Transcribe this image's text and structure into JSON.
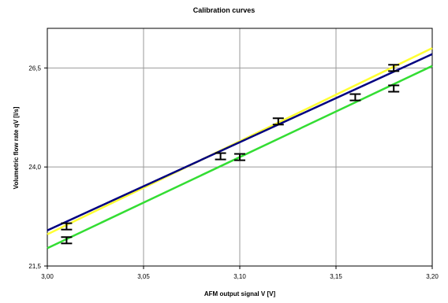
{
  "chart_data": {
    "type": "line",
    "title": "Calibration curves",
    "xlabel": "AFM output signal V [V]",
    "ylabel": "Volumetric flow rate qV [l/s]",
    "xlim": [
      3.0,
      3.2
    ],
    "ylim": [
      21.5,
      27.5
    ],
    "x_ticks": [
      3.0,
      3.05,
      3.1,
      3.15,
      3.2
    ],
    "x_tick_labels": [
      "3,00",
      "3,05",
      "3,10",
      "3,15",
      "3,20"
    ],
    "y_ticks": [
      21.5,
      24.0,
      26.5
    ],
    "y_tick_labels": [
      "21,5",
      "24,0",
      "26,5"
    ],
    "grid": true,
    "series": [
      {
        "color": "#FFFF33",
        "x": [
          3.0,
          3.2
        ],
        "y": [
          22.3,
          27.0
        ]
      },
      {
        "color": "#000080",
        "x": [
          3.0,
          3.2
        ],
        "y": [
          22.4,
          26.85
        ]
      },
      {
        "color": "#33DD33",
        "x": [
          3.0,
          3.2
        ],
        "y": [
          21.95,
          26.55
        ]
      }
    ],
    "error_bars": [
      {
        "x": 3.01,
        "y": 22.5,
        "err": 0.08
      },
      {
        "x": 3.01,
        "y": 22.15,
        "err": 0.08
      },
      {
        "x": 3.09,
        "y": 24.27,
        "err": 0.08
      },
      {
        "x": 3.1,
        "y": 24.25,
        "err": 0.08
      },
      {
        "x": 3.12,
        "y": 25.15,
        "err": 0.08
      },
      {
        "x": 3.16,
        "y": 25.76,
        "err": 0.08
      },
      {
        "x": 3.18,
        "y": 26.5,
        "err": 0.08
      },
      {
        "x": 3.18,
        "y": 25.98,
        "err": 0.08
      }
    ]
  }
}
